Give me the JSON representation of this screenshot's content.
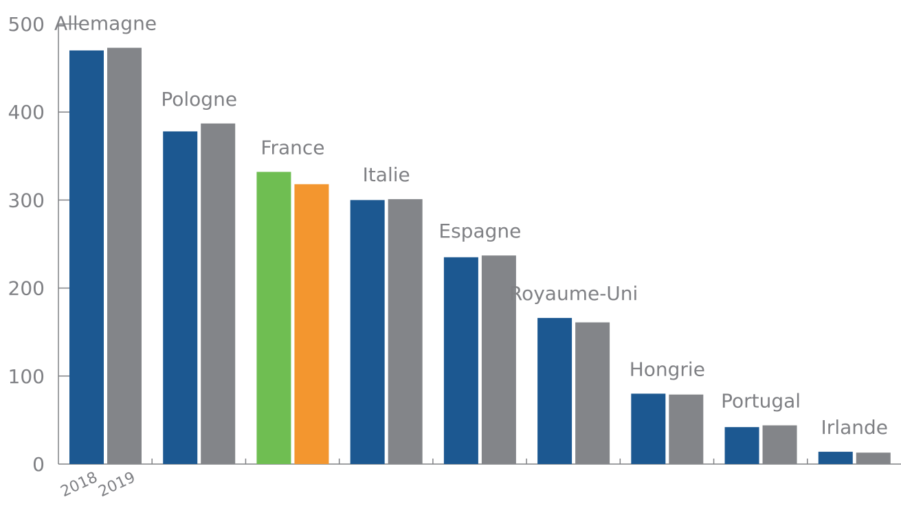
{
  "chart_data": {
    "type": "bar",
    "categories": [
      "Allemagne",
      "Pologne",
      "France",
      "Italie",
      "Espagne",
      "Royaume-Uni",
      "Hongrie",
      "Portugal",
      "Irlande"
    ],
    "series": [
      {
        "name": "2018",
        "values": [
          470,
          378,
          332,
          300,
          235,
          166,
          80,
          42,
          14
        ]
      },
      {
        "name": "2019",
        "values": [
          473,
          387,
          318,
          301,
          237,
          161,
          79,
          44,
          13
        ]
      }
    ],
    "title": "",
    "xlabel": "",
    "ylabel": "",
    "ylim": [
      0,
      500
    ],
    "yticks": [
      0,
      100,
      200,
      300,
      400,
      500
    ],
    "grid": false,
    "legend": "bottom-left",
    "colors": {
      "series_2018": "#1c5891",
      "series_2019": "#838589",
      "highlight_2018": "#6fbe52",
      "highlight_2019": "#f3962f",
      "highlight_label": "#f3962f",
      "text": "#7f8084",
      "axis": "#7f8084"
    },
    "highlight_category": "France"
  }
}
